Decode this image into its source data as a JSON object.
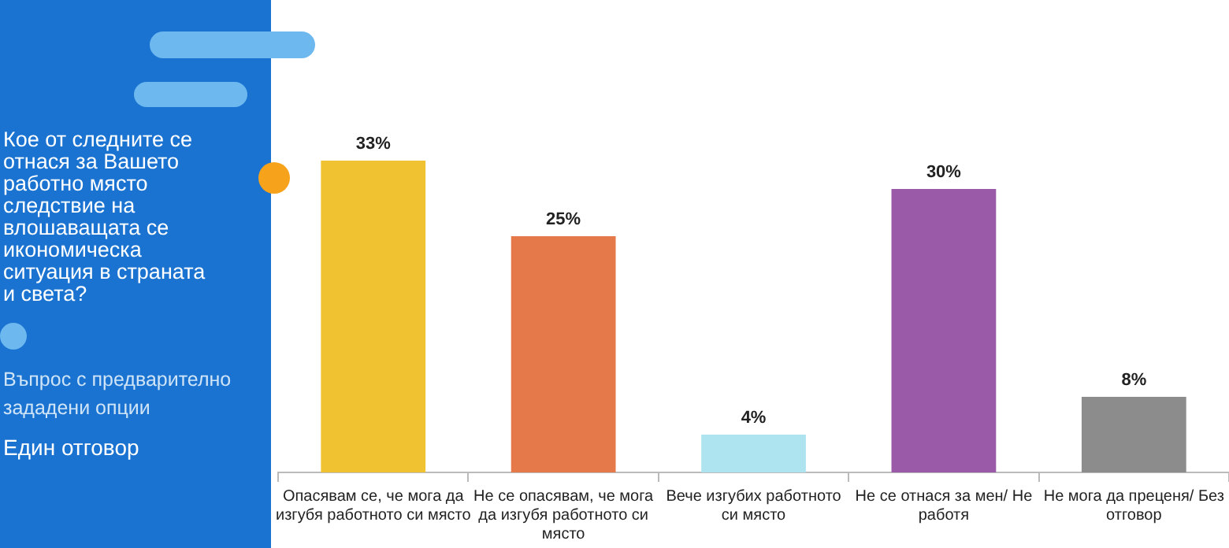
{
  "chart_data": {
    "type": "bar",
    "title": "Кое от следните се отнася за Вашето работно място следствие на влошаващата се икономическа ситуация в страната и света?",
    "subtitle": "Въпрос с предварително зададени опции",
    "annotations": [
      "Един отговор"
    ],
    "categories": [
      "Опасявам се, че мога да изгубя работното си място",
      "Не се опасявам, че мога да изгубя работното си място",
      "Вече изгубих работното си място",
      "Не се отнася за мен/ Не работя",
      "Не мога да преценя/ Без отговор"
    ],
    "values": [
      33,
      25,
      4,
      30,
      8
    ],
    "value_labels": [
      "33%",
      "25%",
      "4%",
      "30%",
      "8%"
    ],
    "colors": [
      "#f0c232",
      "#e5794a",
      "#aee3f0",
      "#9a5aa8",
      "#8c8c8c"
    ],
    "grid": false,
    "legend": false
  }
}
